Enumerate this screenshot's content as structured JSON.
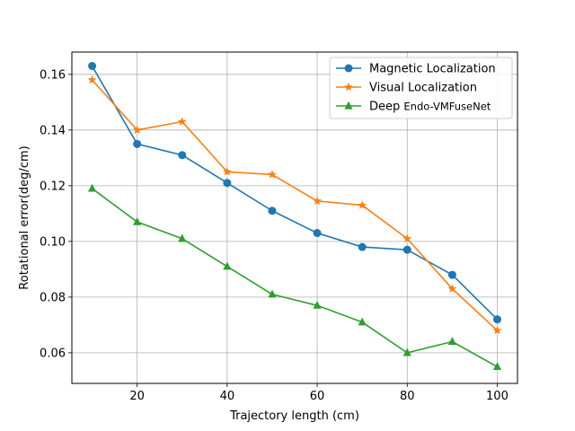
{
  "chart_data": {
    "type": "line",
    "title": "",
    "xlabel": "Trajectory length (cm)",
    "ylabel": "Rotational error(deg/cm)",
    "x": [
      10,
      20,
      30,
      40,
      50,
      60,
      70,
      80,
      90,
      100
    ],
    "xlim": [
      5.5,
      104.5
    ],
    "ylim": [
      0.049,
      0.168
    ],
    "xticks": [
      20,
      40,
      60,
      80,
      100
    ],
    "yticks": [
      0.06,
      0.08,
      0.1,
      0.12,
      0.14,
      0.16
    ],
    "xtick_labels": [
      "20",
      "40",
      "60",
      "80",
      "100"
    ],
    "ytick_labels": [
      "0.06",
      "0.08",
      "0.10",
      "0.12",
      "0.14",
      "0.16"
    ],
    "grid": true,
    "legend_position": "top-right",
    "series": [
      {
        "name": "Magnetic Localization",
        "color": "#1f77b4",
        "marker": "circle",
        "values": [
          0.163,
          0.135,
          0.131,
          0.121,
          0.111,
          0.103,
          0.098,
          0.097,
          0.088,
          0.072
        ]
      },
      {
        "name": "Visual Localization",
        "color": "#ff7f0e",
        "marker": "star",
        "values": [
          0.158,
          0.14,
          0.143,
          0.125,
          0.124,
          0.1145,
          0.113,
          0.101,
          0.083,
          0.068
        ]
      },
      {
        "name": "Deep Endo-VMFuseNet",
        "name_parts": [
          "Deep",
          "Endo-VMFuseNet"
        ],
        "color": "#2ca02c",
        "marker": "triangle",
        "values": [
          0.119,
          0.107,
          0.101,
          0.091,
          0.081,
          0.077,
          0.071,
          0.06,
          0.064,
          0.055
        ]
      }
    ]
  }
}
